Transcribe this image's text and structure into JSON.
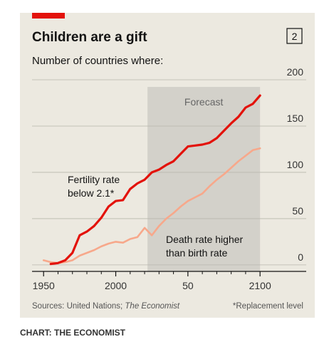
{
  "chart_data": {
    "type": "line",
    "title": "Children are a gift",
    "chart_number": "2",
    "subtitle": "Number of countries where:",
    "forecast_label": "Forecast",
    "forecast_range": [
      2022,
      2100
    ],
    "x": [
      1950,
      1955,
      1960,
      1965,
      1970,
      1975,
      1980,
      1985,
      1990,
      1995,
      2000,
      2005,
      2010,
      2015,
      2020,
      2025,
      2030,
      2035,
      2040,
      2045,
      2050,
      2055,
      2060,
      2065,
      2070,
      2075,
      2080,
      2085,
      2090,
      2095,
      2100
    ],
    "series": [
      {
        "name": "Fertility rate below 2.1*",
        "label_lines": [
          "Fertility rate",
          "below 2.1*"
        ],
        "color": "#e3120b",
        "values": [
          null,
          1,
          2,
          5,
          13,
          32,
          36,
          42,
          51,
          63,
          69,
          70,
          82,
          88,
          92,
          100,
          103,
          108,
          112,
          120,
          128,
          129,
          130,
          132,
          137,
          145,
          153,
          160,
          170,
          174,
          183
        ]
      },
      {
        "name": "Death rate higher than birth rate",
        "label_lines": [
          "Death rate higher",
          "than birth rate"
        ],
        "color": "#f7a88b",
        "values": [
          5,
          3,
          2,
          3,
          5,
          10,
          13,
          16,
          20,
          23,
          25,
          24,
          28,
          30,
          40,
          32,
          42,
          50,
          56,
          63,
          69,
          73,
          77,
          85,
          92,
          98,
          105,
          112,
          118,
          124,
          126
        ]
      }
    ],
    "xlim": [
      1942,
      2131
    ],
    "xticks": [
      1950,
      2000,
      {
        "value": 2050,
        "label": "50"
      },
      2100
    ],
    "xminor_ticks": [
      1960,
      1970,
      1980,
      1990,
      2010,
      2020,
      2030,
      2040,
      2060,
      2070,
      2080,
      2090
    ],
    "ylim": [
      -7,
      200
    ],
    "yticks": [
      0,
      50,
      100,
      150,
      200
    ],
    "grid": true,
    "source": [
      "Sources: United Nations; ",
      "The Economist"
    ],
    "footnote": "*Replacement level",
    "credit": "CHART: THE ECONOMIST"
  }
}
